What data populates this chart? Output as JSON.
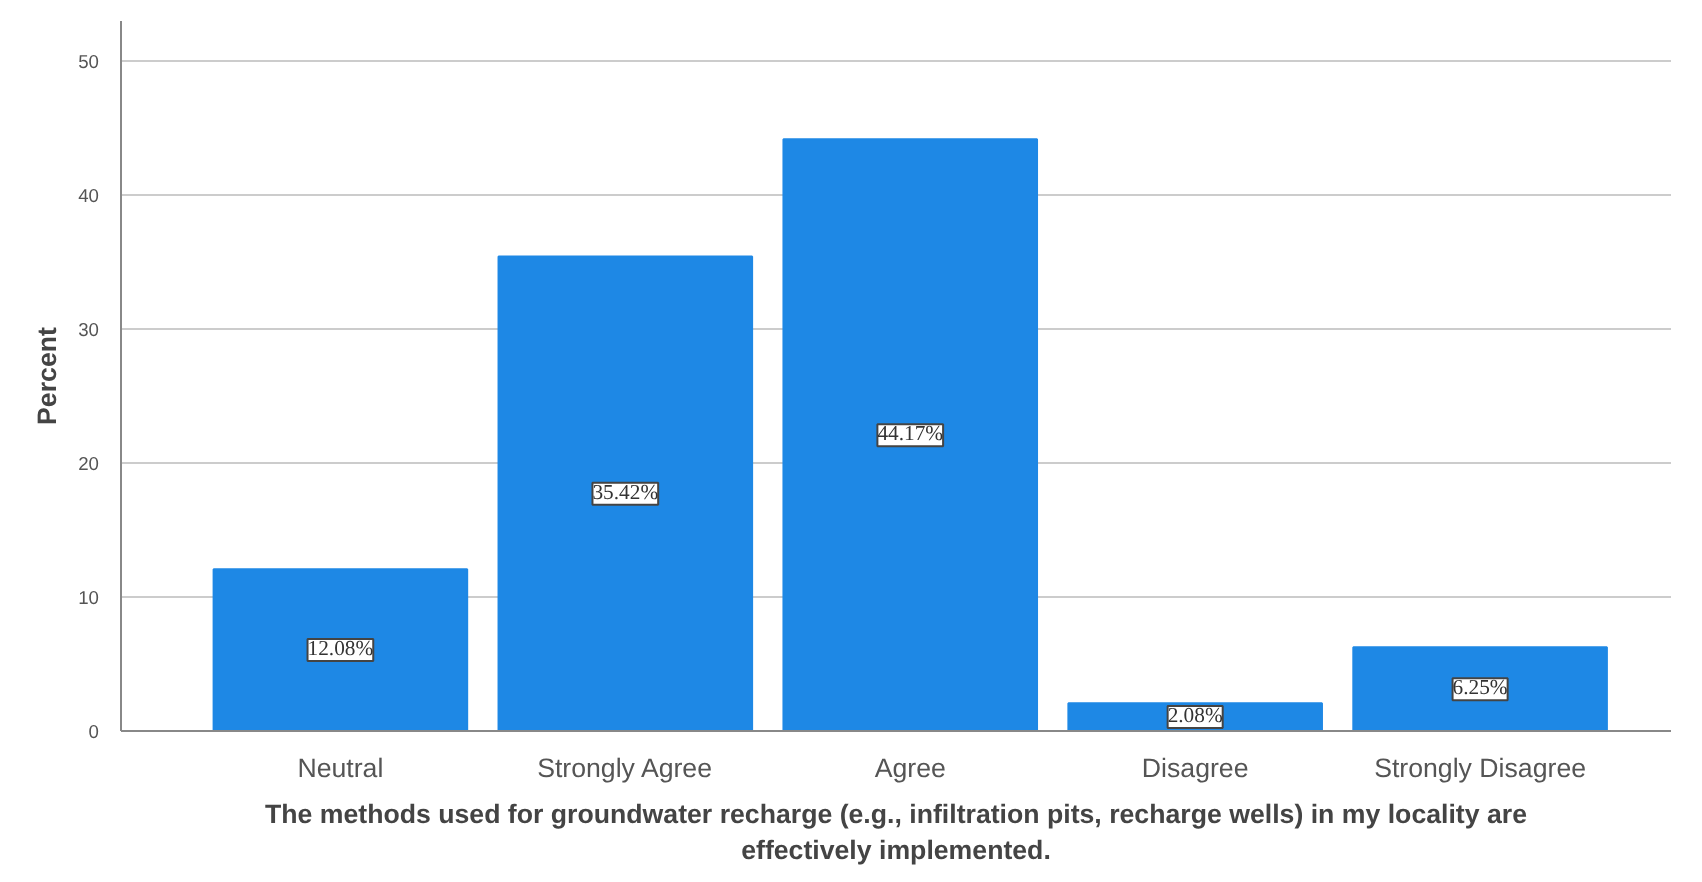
{
  "chart_data": {
    "type": "bar",
    "xlabel": "The methods used for groundwater recharge (e.g., infiltration pits, recharge wells) in my locality are effectively implemented.",
    "ylabel": "Percent",
    "categories": [
      "Neutral",
      "Strongly Agree",
      "Agree",
      "Disagree",
      "Strongly Disagree"
    ],
    "values": [
      12.08,
      35.42,
      44.17,
      2.08,
      6.25
    ],
    "value_labels": [
      "12.08%",
      "35.42%",
      "44.17%",
      "2.08%",
      "6.25%"
    ],
    "color": "#1e88e5",
    "ylim": [
      0,
      53
    ],
    "yticks": [
      0,
      10,
      20,
      30,
      40,
      50
    ],
    "grid": "y"
  }
}
